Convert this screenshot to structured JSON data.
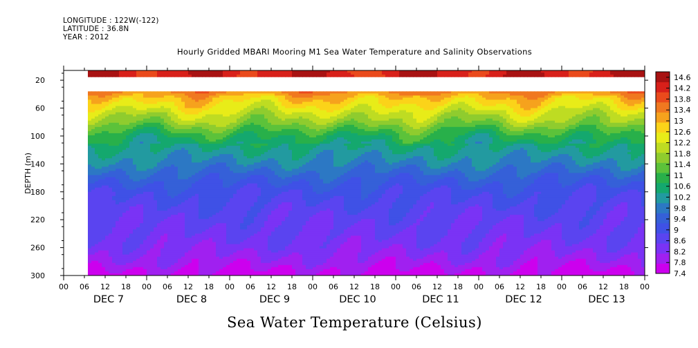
{
  "header": {
    "longitude": "LONGITUDE : 122W(-122)",
    "latitude": "LATITUDE : 36.8N",
    "year": "YEAR : 2012"
  },
  "chart_data": {
    "type": "heatmap",
    "title": "Hourly Gridded MBARI Mooring M1 Sea Water Temperature and Salinity Observations",
    "subtitle": "Sea Water Temperature (Celsius)",
    "xlabel": "",
    "ylabel": "DEPTH (m)",
    "y_inverted": true,
    "ylim": [
      300,
      6
    ],
    "y_ticks": [
      20,
      60,
      100,
      140,
      180,
      220,
      260,
      300
    ],
    "x_range_hours": [
      0,
      168
    ],
    "x_hour_ticks": [
      "00",
      "06",
      "12",
      "18",
      "00",
      "06",
      "12",
      "18",
      "00",
      "06",
      "12",
      "18",
      "00",
      "06",
      "12",
      "18",
      "00",
      "06",
      "12",
      "18",
      "00",
      "06",
      "12",
      "18",
      "00",
      "06",
      "12",
      "18",
      "00"
    ],
    "x_day_labels": [
      "DEC  7",
      "DEC  8",
      "DEC  9",
      "DEC 10",
      "DEC 11",
      "DEC 12",
      "DEC 13"
    ],
    "data_start_hour": 7,
    "no_data_depths_m": [
      15,
      37
    ],
    "colorbar": {
      "levels": [
        14.6,
        14.2,
        13.8,
        13.4,
        13,
        12.6,
        12.2,
        11.8,
        11.4,
        11,
        10.6,
        10.2,
        9.8,
        9.4,
        9,
        8.6,
        8.2,
        7.8,
        7.4
      ],
      "range": [
        7.4,
        14.8
      ],
      "colors": [
        "#cc00ee",
        "#a020f0",
        "#7a33f5",
        "#5a44f0",
        "#3f51e6",
        "#3560d8",
        "#2c78c4",
        "#229aa0",
        "#14a86e",
        "#28b04a",
        "#5cc23a",
        "#8fcc2e",
        "#bedc22",
        "#e8ec18",
        "#fbd319",
        "#f6a21d",
        "#f07820",
        "#ea4a1c",
        "#d8201a",
        "#a81212"
      ]
    },
    "profile_depths_m": [
      6,
      15,
      37,
      45,
      60,
      70,
      80,
      90,
      100,
      120,
      140,
      160,
      180,
      200,
      220,
      240,
      260,
      280,
      300
    ],
    "profile_temps_c": [
      14.3,
      14.3,
      13.4,
      12.9,
      12.4,
      12.0,
      11.7,
      11.2,
      10.8,
      10.3,
      9.9,
      9.4,
      9.0,
      8.8,
      8.6,
      8.5,
      8.3,
      8.0,
      7.6
    ]
  }
}
